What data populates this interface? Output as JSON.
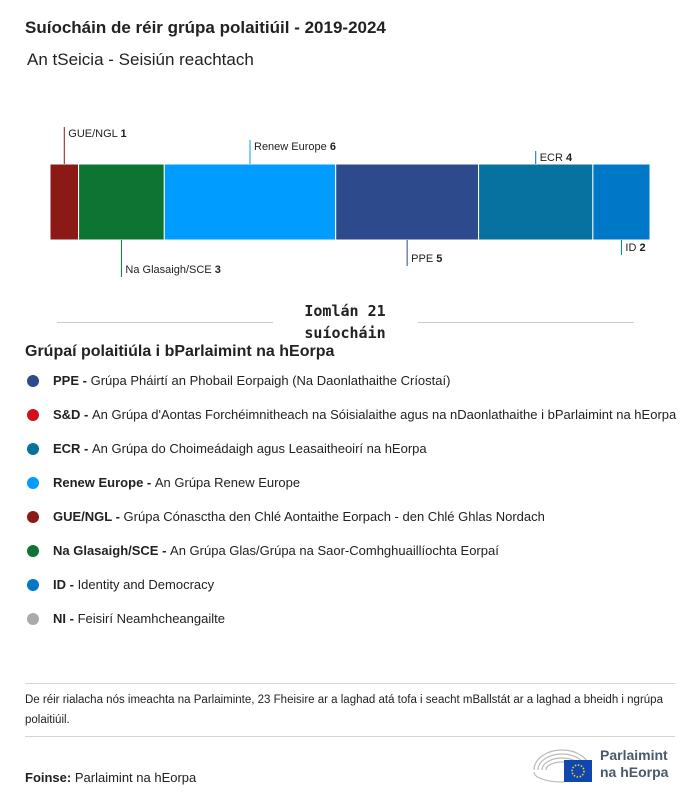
{
  "title": "Suíocháin de réir grúpa polaitiúil - 2019-2024",
  "subtitle": "An tSeicia - Seisiún reachtach",
  "chart_data": {
    "type": "bar",
    "orientation": "stacked-horizontal",
    "categories": [
      "GUE/NGL",
      "Na Glasaigh/SCE",
      "Renew Europe",
      "PPE",
      "ECR",
      "ID"
    ],
    "values": [
      1,
      3,
      6,
      5,
      4,
      2
    ],
    "colors": [
      "#8b1a16",
      "#0e7434",
      "#009cff",
      "#2d4a8c",
      "#07729f",
      "#0078c8"
    ],
    "total_label": "Iomlán 21 suíocháin"
  },
  "legend_title": "Grúpaí polaitiúla i bParlaimint na hEorpa",
  "legend": [
    {
      "abbr": "PPE -",
      "name": "Grúpa Pháirtí an Phobail Eorpaigh (Na Daonlathaithe Críostaí)",
      "color": "#2d4a8c"
    },
    {
      "abbr": "S&D -",
      "name": "An Grúpa d'Aontas Forchéimnitheach na Sóisialaithe agus na nDaonlathaithe i bParlaimint na hEorpa",
      "color": "#d0111b"
    },
    {
      "abbr": "ECR -",
      "name": "An Grúpa do Choimeádaigh agus Leasaitheoirí na hEorpa",
      "color": "#07729f"
    },
    {
      "abbr": "Renew Europe -",
      "name": "An Grúpa Renew Europe",
      "color": "#009cff"
    },
    {
      "abbr": "GUE/NGL -",
      "name": "Grúpa Cónasctha den Chlé Aontaithe Eorpach - den Chlé Ghlas Nordach",
      "color": "#8b1a16"
    },
    {
      "abbr": "Na Glasaigh/SCE -",
      "name": "An Grúpa Glas/Grúpa na Saor-Comhghuaillíochta Eorpaí",
      "color": "#0e7434"
    },
    {
      "abbr": "ID -",
      "name": "Identity and Democracy",
      "color": "#0078c8"
    },
    {
      "abbr": "NI -",
      "name": "Feisirí Neamhcheangailte",
      "color": "#aaaaaa"
    }
  ],
  "note": "De réir rialacha nós imeachta na Parlaiminte, 23 Fheisire ar a laghad atá tofa i seacht mBallstát ar a laghad a bheidh i ngrúpa polaitiúil.",
  "source_label": "Foinse:",
  "source": "Parlaimint na hEorpa",
  "logo_text": "Parlaimint na hEorpa"
}
